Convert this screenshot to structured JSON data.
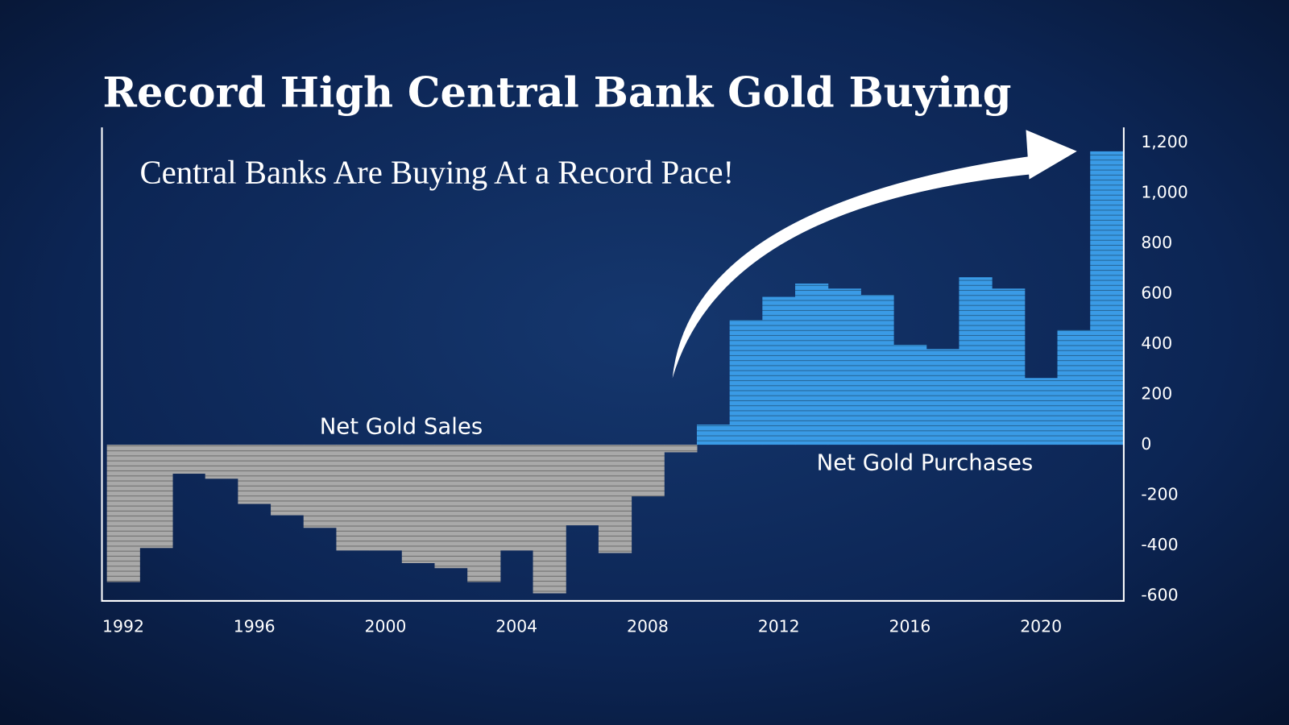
{
  "chart_data": {
    "type": "bar",
    "title": "Record High Central Bank Gold Buying",
    "annotations": [
      "Central Banks Are Buying At a Record Pace!",
      "Net Gold Sales",
      "Net Gold Purchases"
    ],
    "x": [
      1992,
      1993,
      1994,
      1995,
      1996,
      1997,
      1998,
      1999,
      2000,
      2001,
      2002,
      2003,
      2004,
      2005,
      2006,
      2007,
      2008,
      2009,
      2010,
      2011,
      2012,
      2013,
      2014,
      2015,
      2016,
      2017,
      2018,
      2019,
      2020,
      2021,
      2022
    ],
    "values": [
      -545,
      -410,
      -115,
      -135,
      -235,
      -280,
      -330,
      -420,
      -420,
      -470,
      -490,
      -545,
      -420,
      -590,
      -320,
      -430,
      -205,
      -30,
      80,
      495,
      587,
      640,
      620,
      595,
      397,
      380,
      665,
      620,
      265,
      455,
      1165
    ],
    "color": "#3a9be6",
    "negative_color": "#a9a9a9",
    "xlim": [
      1991.5,
      2022.5
    ],
    "xticks": [
      1992,
      1996,
      2000,
      2004,
      2008,
      2012,
      2016,
      2020
    ],
    "ylim": [
      -620,
      1260
    ],
    "yticks": [
      -600,
      -400,
      -200,
      0,
      200,
      400,
      600,
      800,
      {
        "value": 1000,
        "label": "1,000"
      },
      {
        "value": 1200,
        "label": "1,200"
      }
    ],
    "grid": false
  }
}
